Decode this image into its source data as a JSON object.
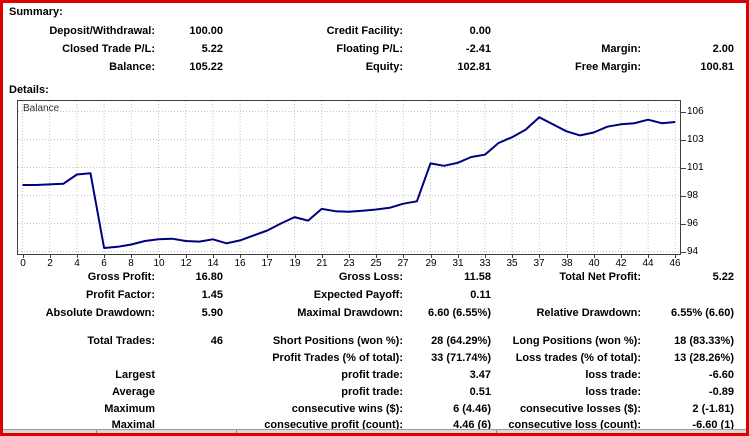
{
  "window": {
    "border_color": "#dd0000",
    "background": "#ffffff"
  },
  "summary": {
    "heading": "Summary:",
    "rows": [
      {
        "cells": [
          {
            "label": "Deposit/Withdrawal:",
            "value": "100.00"
          },
          {
            "label": "Credit Facility:",
            "value": "0.00"
          },
          {
            "label": "",
            "value": ""
          }
        ]
      },
      {
        "cells": [
          {
            "label": "Closed Trade P/L:",
            "value": "5.22"
          },
          {
            "label": "Floating P/L:",
            "value": "-2.41"
          },
          {
            "label": "Margin:",
            "value": "2.00"
          }
        ]
      },
      {
        "cells": [
          {
            "label": "Balance:",
            "value": "105.22"
          },
          {
            "label": "Equity:",
            "value": "102.81"
          },
          {
            "label": "Free Margin:",
            "value": "100.81"
          }
        ]
      }
    ]
  },
  "details": {
    "heading": "Details:",
    "rows": [
      {
        "cells": [
          {
            "label": "Gross Profit:",
            "value": "16.80"
          },
          {
            "label": "Gross Loss:",
            "value": "11.58"
          },
          {
            "label": "Total Net Profit:",
            "value": "5.22"
          }
        ]
      },
      {
        "cells": [
          {
            "label": "Profit Factor:",
            "value": "1.45"
          },
          {
            "label": "Expected Payoff:",
            "value": "0.11"
          },
          {
            "label": "",
            "value": ""
          }
        ]
      },
      {
        "cells": [
          {
            "label": "Absolute Drawdown:",
            "value": "5.90"
          },
          {
            "label": "Maximal Drawdown:",
            "value": "6.60 (6.55%)"
          },
          {
            "label": "Relative Drawdown:",
            "value": "6.55% (6.60)"
          }
        ]
      },
      {
        "cells": [
          {
            "label": "Total Trades:",
            "value": "46"
          },
          {
            "label": "Short Positions (won %):",
            "value": "28 (64.29%)"
          },
          {
            "label": "Long Positions (won %):",
            "value": "18 (83.33%)"
          }
        ]
      },
      {
        "cells": [
          {
            "label": "",
            "value": ""
          },
          {
            "label": "Profit Trades (% of total):",
            "value": "33 (71.74%)"
          },
          {
            "label": "Loss trades (% of total):",
            "value": "13 (28.26%)"
          }
        ]
      },
      {
        "cells": [
          {
            "label": "Largest",
            "value": ""
          },
          {
            "label": "profit trade:",
            "value": "3.47"
          },
          {
            "label": "loss trade:",
            "value": "-6.60"
          }
        ]
      },
      {
        "cells": [
          {
            "label": "Average",
            "value": ""
          },
          {
            "label": "profit trade:",
            "value": "0.51"
          },
          {
            "label": "loss trade:",
            "value": "-0.89"
          }
        ]
      },
      {
        "cells": [
          {
            "label": "Maximum",
            "value": ""
          },
          {
            "label": "consecutive wins ($):",
            "value": "6 (4.46)"
          },
          {
            "label": "consecutive losses ($):",
            "value": "2 (-1.81)"
          }
        ]
      },
      {
        "cells": [
          {
            "label": "Maximal",
            "value": ""
          },
          {
            "label": "consecutive profit (count):",
            "value": "4.46 (6)"
          },
          {
            "label": "consecutive loss (count):",
            "value": "-6.60 (1)"
          }
        ]
      }
    ]
  },
  "chart_data": {
    "type": "line",
    "title": "Balance",
    "xlabel": "",
    "ylabel": "",
    "x": [
      0,
      1,
      2,
      3,
      4,
      5,
      6,
      7,
      8,
      9,
      10,
      11,
      12,
      13,
      14,
      15,
      16,
      17,
      18,
      19,
      20,
      21,
      22,
      23,
      24,
      25,
      26,
      27,
      28,
      29,
      30,
      31,
      32,
      33,
      34,
      35,
      36,
      37,
      38,
      39,
      40,
      41,
      42,
      43,
      44,
      45,
      46
    ],
    "values": [
      99.7,
      99.7,
      99.75,
      99.8,
      100.6,
      100.7,
      94.3,
      94.4,
      94.6,
      94.9,
      95.05,
      95.1,
      94.9,
      94.85,
      95.05,
      94.7,
      94.95,
      95.8,
      96.4,
      96.95,
      96.65,
      97.65,
      97.45,
      97.4,
      97.5,
      97.6,
      97.75,
      98.1,
      98.3,
      101.55,
      101.35,
      101.6,
      102.1,
      102.3,
      103.3,
      103.8,
      104.45,
      105.5,
      104.3,
      103.95,
      104.2,
      104.7,
      104.9,
      105.0,
      105.3,
      105.0,
      105.1
    ],
    "x_tick_labels": [
      "0",
      "2",
      "4",
      "6",
      "8",
      "10",
      "12",
      "14",
      "16",
      "17",
      "19",
      "21",
      "23",
      "25",
      "27",
      "29",
      "31",
      "33",
      "35",
      "37",
      "38",
      "40",
      "42",
      "44",
      "46"
    ],
    "y_tick_labels_top_to_bottom": [
      "106",
      "103",
      "101",
      "98",
      "96",
      "94"
    ],
    "ylim": [
      93.7,
      106.9
    ],
    "grid": true,
    "legend_position": "top-left-inside",
    "line_color": "#000080",
    "grid_color": "#c6c6c6"
  }
}
